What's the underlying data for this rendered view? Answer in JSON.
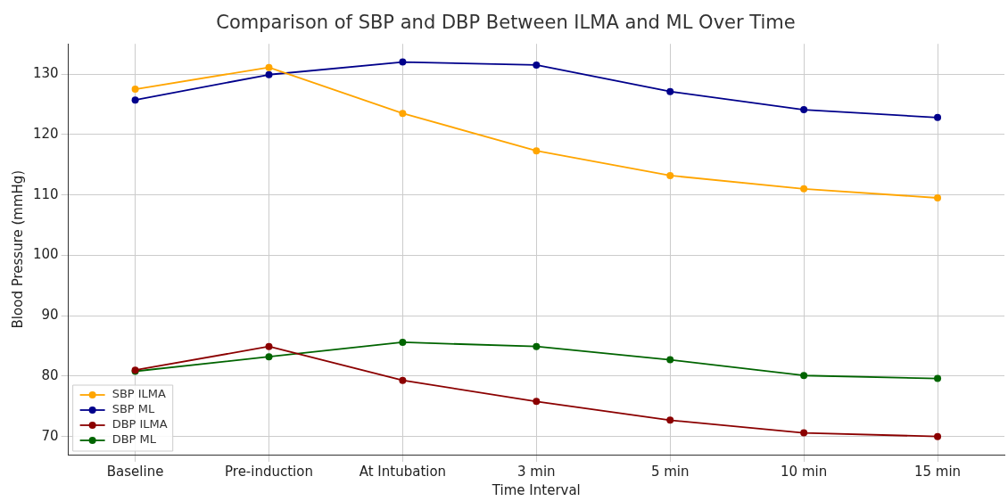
{
  "chart_data": {
    "type": "line",
    "title": "Comparison of SBP and DBP Between ILMA and ML Over Time",
    "xlabel": "Time Interval",
    "ylabel": "Blood Pressure (mmHg)",
    "categories": [
      "Baseline",
      "Pre-induction",
      "At Intubation",
      "3 min",
      "5 min",
      "10 min",
      "15 min"
    ],
    "series": [
      {
        "name": "SBP ILMA",
        "color": "#ffa500",
        "values": [
          127.5,
          131.1,
          123.5,
          117.3,
          113.2,
          111.0,
          109.5
        ]
      },
      {
        "name": "SBP ML",
        "color": "#00008b",
        "values": [
          125.7,
          129.9,
          132.0,
          131.5,
          127.1,
          124.1,
          122.8
        ]
      },
      {
        "name": "DBP ILMA",
        "color": "#8b0000",
        "values": [
          81.0,
          84.9,
          79.3,
          75.8,
          72.7,
          70.6,
          70.0
        ]
      },
      {
        "name": "DBP ML",
        "color": "#006400",
        "values": [
          80.8,
          83.2,
          85.6,
          84.9,
          82.7,
          80.1,
          79.6
        ]
      }
    ],
    "ylim": [
      67,
      135
    ],
    "yticks": [
      70,
      80,
      90,
      100,
      110,
      120,
      130
    ],
    "grid": true,
    "legend": "bottom left",
    "marker": "circle",
    "line_style": "solid"
  }
}
